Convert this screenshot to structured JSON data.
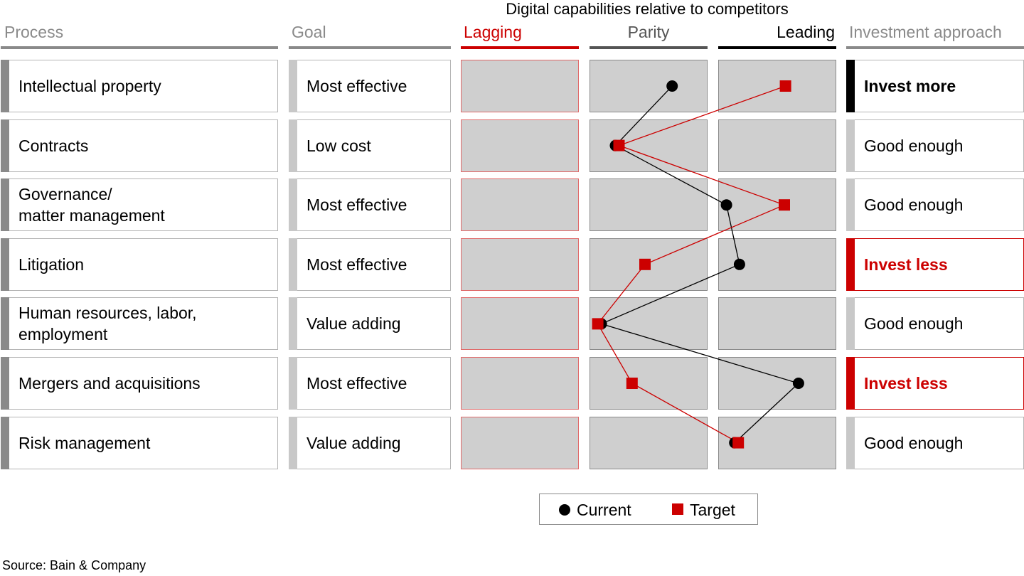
{
  "title": "Digital capabilities relative to competitors",
  "headers": {
    "process": "Process",
    "goal": "Goal",
    "lagging": "Lagging",
    "parity": "Parity",
    "leading": "Leading",
    "investment": "Investment approach"
  },
  "colors": {
    "red": "#cc0000",
    "black": "#000000",
    "gray_text": "#8a8a8a",
    "cell_fill": "#cfcfcf",
    "gray_accent": "#8a8a8a",
    "light_accent": "#c8c8c8"
  },
  "rows": [
    {
      "process": "Intellectual property",
      "goal": "Most effective",
      "investment": "Invest more",
      "style": "more"
    },
    {
      "process": "Contracts",
      "goal": "Low cost",
      "investment": "Good enough",
      "style": "enough"
    },
    {
      "process": "Governance/\nmatter management",
      "goal": "Most effective",
      "investment": "Good enough",
      "style": "enough"
    },
    {
      "process": "Litigation",
      "goal": "Most effective",
      "investment": "Invest less",
      "style": "less"
    },
    {
      "process": "Human resources, labor,\nemployment",
      "goal": "Value adding",
      "investment": "Good enough",
      "style": "enough"
    },
    {
      "process": "Mergers and acquisitions",
      "goal": "Most effective",
      "investment": "Invest less",
      "style": "less"
    },
    {
      "process": "Risk management",
      "goal": "Value adding",
      "investment": "Good enough",
      "style": "enough"
    }
  ],
  "chart_data": {
    "type": "line",
    "scale_categories": [
      "Lagging",
      "Parity",
      "Leading"
    ],
    "scale_range": [
      0,
      3
    ],
    "y_categories": [
      "Intellectual property",
      "Contracts",
      "Governance/matter management",
      "Litigation",
      "Human resources, labor, employment",
      "Mergers and acquisitions",
      "Risk management"
    ],
    "series": [
      {
        "name": "Current",
        "marker": "circle",
        "color": "#000000",
        "values": [
          1.7,
          1.22,
          2.07,
          2.18,
          1.1,
          2.68,
          2.14
        ]
      },
      {
        "name": "Target",
        "marker": "square",
        "color": "#cc0000",
        "values": [
          2.57,
          1.25,
          2.56,
          1.47,
          1.07,
          1.36,
          2.17
        ]
      }
    ]
  },
  "legend": {
    "current": "Current",
    "target": "Target"
  },
  "source": "Source: Bain & Company"
}
